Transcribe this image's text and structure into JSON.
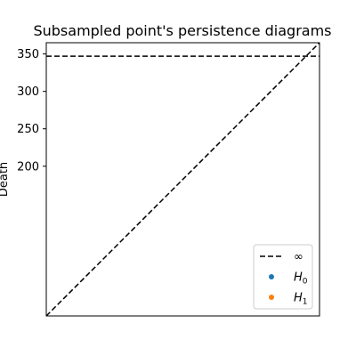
{
  "chart_data": {
    "type": "scatter",
    "title": "Subsampled point's persistence diagrams",
    "xlabel": "",
    "ylabel": "Death",
    "xlim": [
      0,
      365
    ],
    "ylim": [
      0,
      365
    ],
    "yticks": [
      200,
      250,
      300,
      350
    ],
    "xticks": [],
    "grid": false,
    "infinity_line": {
      "y": 347,
      "style": "dashed",
      "color": "#000000"
    },
    "diagonal": {
      "style": "dashed",
      "color": "#000000"
    },
    "series": [
      {
        "name": "H0",
        "color": "#1f77b4",
        "points": []
      },
      {
        "name": "H1",
        "color": "#ff7f0e",
        "points": []
      }
    ],
    "legend": {
      "position": "lower-right",
      "entries": [
        {
          "label": "∞",
          "marker": "dashed-line",
          "color": "#000000"
        },
        {
          "label": "H0",
          "base": "H",
          "sub": "0",
          "marker": "dot",
          "color": "#1f77b4"
        },
        {
          "label": "H1",
          "base": "H",
          "sub": "1",
          "marker": "dot",
          "color": "#ff7f0e"
        }
      ]
    }
  }
}
